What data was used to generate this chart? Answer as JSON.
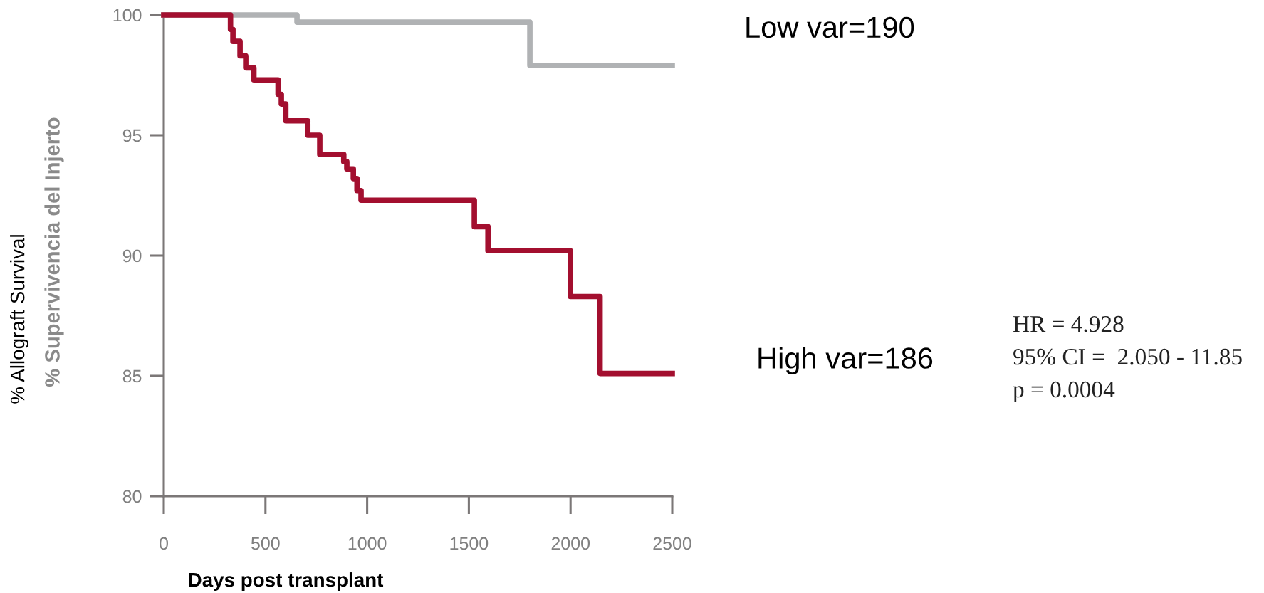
{
  "chart_data": {
    "type": "step",
    "xlabel": "Days post transplant",
    "ylabel": "% Allograft Survival",
    "annotations": [
      "% Supervivencia del Injerto",
      "HR = 4.928",
      "95% CI =  2.050 - 11.85",
      "p = 0.0004"
    ],
    "xlim": [
      0,
      2500
    ],
    "ylim": [
      80,
      100
    ],
    "xticks": [
      0,
      500,
      1000,
      1500,
      2000,
      2500
    ],
    "yticks": [
      80,
      85,
      90,
      95,
      100
    ],
    "series": [
      {
        "name": "Low var=190",
        "color": "#b0b2b4",
        "x": [
          0,
          655,
          1800,
          2500
        ],
        "values": [
          100,
          99.7,
          97.9,
          97.9
        ]
      },
      {
        "name": "High var=186",
        "color": "#a30f2f",
        "x": [
          0,
          328,
          340,
          375,
          403,
          443,
          562,
          578,
          600,
          708,
          767,
          885,
          900,
          932,
          950,
          970,
          1527,
          1594,
          1999,
          2145,
          2500
        ],
        "values": [
          100,
          99.4,
          98.9,
          98.3,
          97.8,
          97.3,
          96.7,
          96.3,
          95.6,
          95.0,
          94.2,
          93.9,
          93.6,
          93.2,
          92.7,
          92.3,
          91.2,
          90.2,
          88.3,
          85.1,
          85.1
        ]
      }
    ]
  }
}
